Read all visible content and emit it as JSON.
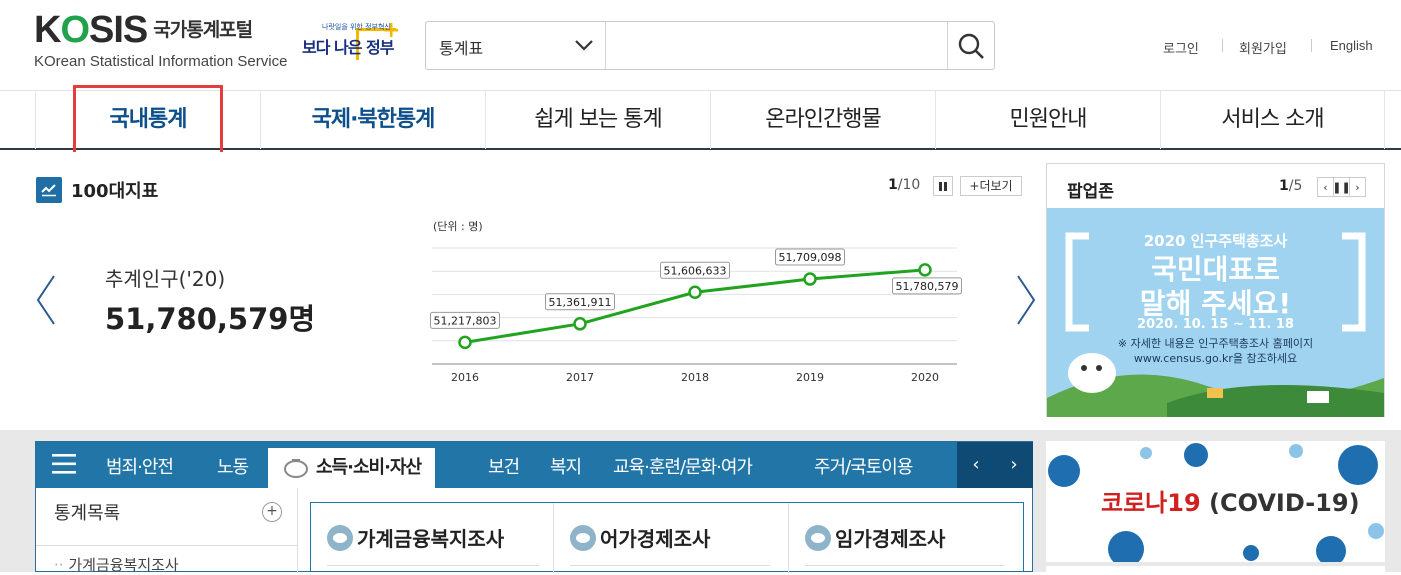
{
  "header": {
    "logo_text": "KOSIS",
    "logo_kr": "국가통계포털",
    "logo_sub": "KOrean Statistical Information Service",
    "gov_small": "나랏일을 위한 정부혁신",
    "gov_logo": "보다 나은 정부",
    "search": {
      "select_value": "통계표",
      "placeholder": "",
      "button_icon": "search-icon"
    },
    "util": [
      "로그인",
      "회원가입",
      "English"
    ]
  },
  "gnb": {
    "items": [
      {
        "label": "국내통계"
      },
      {
        "label": "국제·북한통계"
      },
      {
        "label": "쉽게 보는 통계"
      },
      {
        "label": "온라인간행물"
      },
      {
        "label": "민원안내"
      },
      {
        "label": "서비스 소개"
      }
    ]
  },
  "indicator": {
    "title": "100대지표",
    "page_current": "1",
    "page_total": "/10",
    "more_label": "+더보기",
    "name": "추계인구('20)",
    "value": "51,780,579명",
    "unit": "(단위 : 명)"
  },
  "chart_data": {
    "type": "line",
    "x": [
      "2016",
      "2017",
      "2018",
      "2019",
      "2020"
    ],
    "series": [
      {
        "values": [
          51217803,
          51361911,
          51606633,
          51709098,
          51780579
        ]
      }
    ],
    "data_labels": [
      "51,217,803",
      "51,361,911",
      "51,606,633",
      "51,709,098",
      "51,780,579"
    ],
    "ylim": [
      51050000,
      51950000
    ],
    "line_color": "#21a320",
    "grid": true
  },
  "popup": {
    "title": "팝업존",
    "page_current": "1",
    "page_total": "/5",
    "banner": {
      "line1": "2020 인구주택총조사",
      "line2": "국민대표로",
      "line3": "말해 주세요!",
      "line4": "2020. 10. 15 ~ 11. 18",
      "line5": "※ 자세한 내용은 인구주택총조사 홈페이지",
      "line6": "www.census.go.kr을 참조하세요"
    }
  },
  "category": {
    "tabs": [
      "범죄·안전",
      "노동",
      "소득·소비·자산",
      "보건",
      "복지",
      "교육·훈련/문화·여가",
      "주거/국토이용"
    ],
    "side_title": "통계목록",
    "side_item": "가계금융복지조사",
    "columns": [
      "가계금융복지조사",
      "어가경제조사",
      "임가경제조사"
    ]
  },
  "covid": {
    "red": "코로나19",
    "black": " (COVID-19)"
  }
}
